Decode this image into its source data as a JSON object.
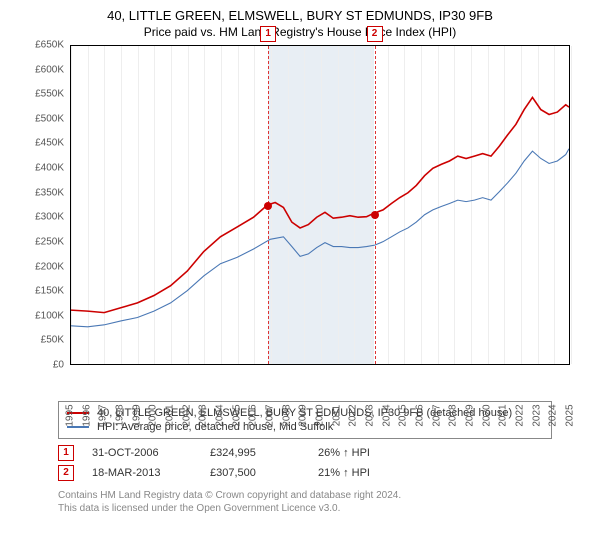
{
  "title": "40, LITTLE GREEN, ELMSWELL, BURY ST EDMUNDS, IP30 9FB",
  "subtitle": "Price paid vs. HM Land Registry's House Price Index (HPI)",
  "chart": {
    "type": "line",
    "ylim": [
      0,
      650000
    ],
    "ytick_step": 50000,
    "y_tick_labels": [
      "£0",
      "£50K",
      "£100K",
      "£150K",
      "£200K",
      "£250K",
      "£300K",
      "£350K",
      "£400K",
      "£450K",
      "£500K",
      "£550K",
      "£600K",
      "£650K"
    ],
    "x_years": [
      "1995",
      "1996",
      "1997",
      "1998",
      "1999",
      "2000",
      "2001",
      "2002",
      "2003",
      "2004",
      "2005",
      "2006",
      "2007",
      "2008",
      "2009",
      "2010",
      "2011",
      "2012",
      "2013",
      "2014",
      "2015",
      "2016",
      "2017",
      "2018",
      "2019",
      "2020",
      "2021",
      "2022",
      "2023",
      "2024",
      "2025"
    ],
    "band_start_year": 2006.83,
    "band_end_year": 2013.21,
    "colors": {
      "series_red": "#cc0000",
      "series_blue": "#4a78b5",
      "grid": "#eeeeee",
      "band": "#e8eef4",
      "dashed": "#d33333",
      "axis": "#000000",
      "text": "#333333",
      "footer": "#888888",
      "bg": "#ffffff"
    },
    "line_width_red": 1.6,
    "line_width_blue": 1.1,
    "series_red": [
      [
        1995,
        110000
      ],
      [
        1996,
        108000
      ],
      [
        1997,
        105000
      ],
      [
        1998,
        115000
      ],
      [
        1999,
        125000
      ],
      [
        2000,
        140000
      ],
      [
        2001,
        160000
      ],
      [
        2002,
        190000
      ],
      [
        2003,
        230000
      ],
      [
        2004,
        260000
      ],
      [
        2005,
        280000
      ],
      [
        2006,
        300000
      ],
      [
        2006.83,
        324995
      ],
      [
        2007.3,
        330000
      ],
      [
        2007.8,
        320000
      ],
      [
        2008.3,
        290000
      ],
      [
        2008.8,
        278000
      ],
      [
        2009.3,
        285000
      ],
      [
        2009.8,
        300000
      ],
      [
        2010.3,
        310000
      ],
      [
        2010.8,
        298000
      ],
      [
        2011.3,
        300000
      ],
      [
        2011.8,
        303000
      ],
      [
        2012.3,
        300000
      ],
      [
        2012.8,
        301000
      ],
      [
        2013.21,
        307500
      ],
      [
        2013.8,
        315000
      ],
      [
        2014.3,
        328000
      ],
      [
        2014.8,
        340000
      ],
      [
        2015.3,
        350000
      ],
      [
        2015.8,
        365000
      ],
      [
        2016.3,
        385000
      ],
      [
        2016.8,
        400000
      ],
      [
        2017.3,
        408000
      ],
      [
        2017.8,
        415000
      ],
      [
        2018.3,
        425000
      ],
      [
        2018.8,
        420000
      ],
      [
        2019.3,
        425000
      ],
      [
        2019.8,
        430000
      ],
      [
        2020.3,
        425000
      ],
      [
        2020.8,
        445000
      ],
      [
        2021.3,
        468000
      ],
      [
        2021.8,
        490000
      ],
      [
        2022.3,
        520000
      ],
      [
        2022.8,
        545000
      ],
      [
        2023.3,
        520000
      ],
      [
        2023.8,
        510000
      ],
      [
        2024.3,
        515000
      ],
      [
        2024.8,
        530000
      ],
      [
        2025,
        525000
      ]
    ],
    "series_blue": [
      [
        1995,
        78000
      ],
      [
        1996,
        76000
      ],
      [
        1997,
        80000
      ],
      [
        1998,
        88000
      ],
      [
        1999,
        95000
      ],
      [
        2000,
        108000
      ],
      [
        2001,
        125000
      ],
      [
        2002,
        150000
      ],
      [
        2003,
        180000
      ],
      [
        2004,
        205000
      ],
      [
        2005,
        218000
      ],
      [
        2006,
        235000
      ],
      [
        2007,
        255000
      ],
      [
        2007.8,
        260000
      ],
      [
        2008.3,
        240000
      ],
      [
        2008.8,
        220000
      ],
      [
        2009.3,
        225000
      ],
      [
        2009.8,
        238000
      ],
      [
        2010.3,
        248000
      ],
      [
        2010.8,
        240000
      ],
      [
        2011.3,
        240000
      ],
      [
        2011.8,
        238000
      ],
      [
        2012.3,
        238000
      ],
      [
        2012.8,
        240000
      ],
      [
        2013.3,
        243000
      ],
      [
        2013.8,
        250000
      ],
      [
        2014.3,
        260000
      ],
      [
        2014.8,
        270000
      ],
      [
        2015.3,
        278000
      ],
      [
        2015.8,
        290000
      ],
      [
        2016.3,
        305000
      ],
      [
        2016.8,
        315000
      ],
      [
        2017.3,
        322000
      ],
      [
        2017.8,
        328000
      ],
      [
        2018.3,
        335000
      ],
      [
        2018.8,
        332000
      ],
      [
        2019.3,
        335000
      ],
      [
        2019.8,
        340000
      ],
      [
        2020.3,
        335000
      ],
      [
        2020.8,
        352000
      ],
      [
        2021.3,
        370000
      ],
      [
        2021.8,
        390000
      ],
      [
        2022.3,
        415000
      ],
      [
        2022.8,
        435000
      ],
      [
        2023.3,
        420000
      ],
      [
        2023.8,
        410000
      ],
      [
        2024.3,
        415000
      ],
      [
        2024.8,
        428000
      ],
      [
        2025,
        440000
      ]
    ],
    "markers": [
      {
        "n": "1",
        "year": 2006.83,
        "price": 324995,
        "box_y": -20
      },
      {
        "n": "2",
        "year": 2013.21,
        "price": 307500,
        "box_y": -20
      }
    ]
  },
  "legend": {
    "red": "40, LITTLE GREEN, ELMSWELL, BURY ST EDMUNDS, IP30 9FB (detached house)",
    "blue": "HPI: Average price, detached house, Mid Suffolk"
  },
  "sales": [
    {
      "n": "1",
      "date": "31-OCT-2006",
      "price": "£324,995",
      "hpi": "26% ↑ HPI"
    },
    {
      "n": "2",
      "date": "18-MAR-2013",
      "price": "£307,500",
      "hpi": "21% ↑ HPI"
    }
  ],
  "footer1": "Contains HM Land Registry data © Crown copyright and database right 2024.",
  "footer2": "This data is licensed under the Open Government Licence v3.0."
}
